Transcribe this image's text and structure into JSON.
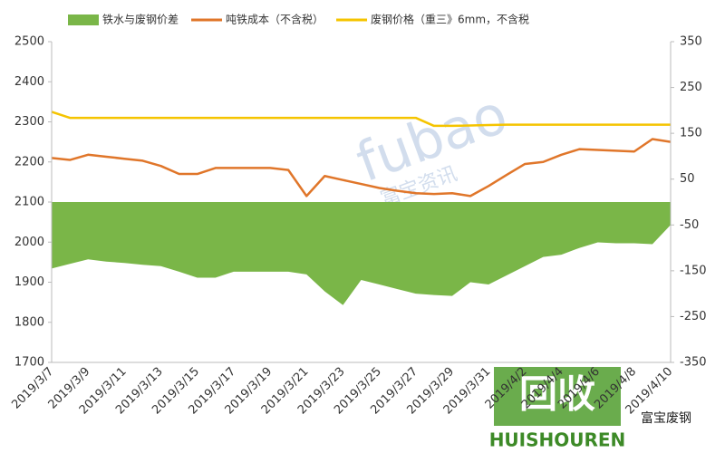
{
  "chart_data": {
    "type": "line",
    "categories": [
      "2019/3/7",
      null,
      "2019/3/9",
      null,
      "2019/3/11",
      null,
      "2019/3/13",
      null,
      "2019/3/15",
      null,
      "2019/3/17",
      null,
      "2019/3/19",
      null,
      "2019/3/21",
      null,
      "2019/3/23",
      null,
      "2019/3/25",
      null,
      "2019/3/27",
      null,
      "2019/3/29",
      null,
      "2019/3/31",
      null,
      "2019/4/2",
      null,
      "2019/4/4",
      null,
      "2019/4/6",
      null,
      "2019/4/8",
      null,
      "2019/4/10"
    ],
    "series": [
      {
        "name": "铁水与废钢价差",
        "type": "area",
        "axis": "y2",
        "color": "#7ab648",
        "values": [
          -145,
          -135,
          -125,
          -130,
          -133,
          -137,
          -140,
          -152,
          -165,
          -165,
          -152,
          -152,
          -152,
          -152,
          -158,
          -195,
          -225,
          -170,
          -180,
          -190,
          -200,
          -203,
          -205,
          -175,
          -180,
          -160,
          -140,
          -120,
          -115,
          -100,
          -88,
          -90,
          -90,
          -92,
          -50
        ]
      },
      {
        "name": "吨铁成本（不含税）",
        "type": "line",
        "color": "#e0762a",
        "values": [
          2210,
          2205,
          2218,
          2213,
          2208,
          2203,
          2190,
          2170,
          2170,
          2185,
          2185,
          2185,
          2185,
          2180,
          2115,
          2165,
          2155,
          2145,
          2135,
          2128,
          2122,
          2120,
          2122,
          2115,
          2140,
          2168,
          2195,
          2200,
          2218,
          2232,
          2230,
          2228,
          2226,
          2257,
          2250
        ]
      },
      {
        "name": "废钢价格（重三》6mm，不含税",
        "type": "line",
        "color": "#f5c400",
        "values": [
          2325,
          2310,
          2310,
          2310,
          2310,
          2310,
          2310,
          2310,
          2310,
          2310,
          2310,
          2310,
          2310,
          2310,
          2310,
          2310,
          2310,
          2310,
          2310,
          2310,
          2310,
          2290,
          2290,
          2291,
          2292,
          2293,
          2293,
          2293,
          2293,
          2293,
          2293,
          2293,
          2293,
          2293,
          2293
        ]
      }
    ],
    "ylim": [
      1700,
      2500
    ],
    "yticks": [
      1700,
      1800,
      1900,
      2000,
      2100,
      2200,
      2300,
      2400,
      2500
    ],
    "y2lim": [
      -350,
      350
    ],
    "y2ticks": [
      -350,
      -250,
      -150,
      -50,
      50,
      150,
      250,
      350
    ],
    "legend": "top",
    "annotations": [
      "fubao",
      "富宝资讯",
      "回收",
      "HUISHOUREN",
      "富宝废钢"
    ]
  }
}
